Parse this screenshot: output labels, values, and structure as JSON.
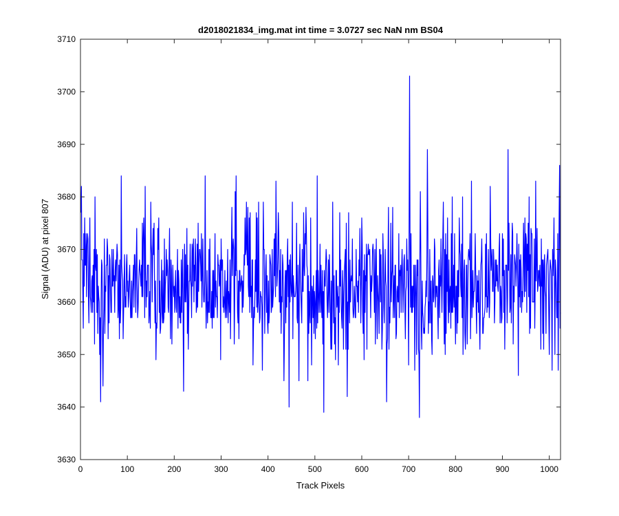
{
  "chart_data": {
    "type": "line",
    "title": "d2018021834_img.mat int time = 3.0727 sec  NaN nm BS04",
    "xlabel": "Track Pixels",
    "ylabel": "Signal (ADU) at pixel 807",
    "xlim": [
      0,
      1024
    ],
    "ylim": [
      3630,
      3710
    ],
    "xticks": [
      0,
      100,
      200,
      300,
      400,
      500,
      600,
      700,
      800,
      900,
      1000
    ],
    "yticks": [
      3630,
      3640,
      3650,
      3660,
      3670,
      3680,
      3690,
      3700,
      3710
    ],
    "grid": false,
    "line_color": "#0000ff",
    "series": [
      {
        "x_start": 1,
        "x_step": 1,
        "count": 1024,
        "mean": 3663.5,
        "std": 6.8,
        "notable_points": [
          {
            "x": 43,
            "y": 3641
          },
          {
            "x": 48,
            "y": 3644
          },
          {
            "x": 87,
            "y": 3684
          },
          {
            "x": 220,
            "y": 3643
          },
          {
            "x": 266,
            "y": 3684
          },
          {
            "x": 332,
            "y": 3684
          },
          {
            "x": 445,
            "y": 3640
          },
          {
            "x": 505,
            "y": 3684
          },
          {
            "x": 519,
            "y": 3639
          },
          {
            "x": 569,
            "y": 3642
          },
          {
            "x": 653,
            "y": 3641
          },
          {
            "x": 702,
            "y": 3703
          },
          {
            "x": 723,
            "y": 3638
          },
          {
            "x": 740,
            "y": 3689
          },
          {
            "x": 912,
            "y": 3689
          },
          {
            "x": 1019,
            "y": 3647
          },
          {
            "x": 1022,
            "y": 3686
          }
        ]
      }
    ]
  }
}
